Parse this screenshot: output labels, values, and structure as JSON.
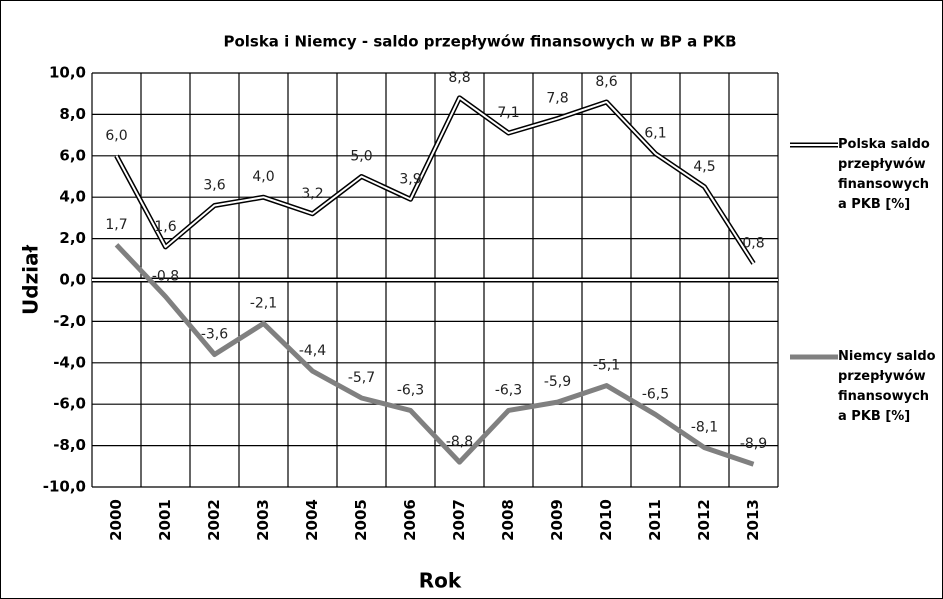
{
  "chart_data": {
    "type": "line",
    "title": "Polska i Niemcy - saldo przepływów finansowych w BP a PKB",
    "xlabel": "Rok",
    "ylabel": "Udział",
    "categories": [
      "2000",
      "2001",
      "2002",
      "2003",
      "2004",
      "2005",
      "2006",
      "2007",
      "2008",
      "2009",
      "2010",
      "2011",
      "2012",
      "2013"
    ],
    "series": [
      {
        "name": "Polska saldo przepływów finansowych a PKB [%]",
        "color": "#000000",
        "values": [
          6.0,
          1.6,
          3.6,
          4.0,
          3.2,
          5.0,
          3.9,
          8.8,
          7.1,
          7.8,
          8.6,
          6.1,
          4.5,
          0.8
        ],
        "value_labels": [
          "6,0",
          "1,6",
          "3,6",
          "4,0",
          "3,2",
          "5,0",
          "3,9",
          "8,8",
          "7,1",
          "7,8",
          "8,6",
          "6,1",
          "4,5",
          "0,8"
        ]
      },
      {
        "name": "Niemcy saldo przepływów finansowych a PKB [%]",
        "color": "#808080",
        "values": [
          1.7,
          -0.8,
          -3.6,
          -2.1,
          -4.4,
          -5.7,
          -6.3,
          -8.8,
          -6.3,
          -5.9,
          -5.1,
          -6.5,
          -8.1,
          -8.9
        ],
        "value_labels": [
          "1,7",
          "-0,8",
          "-3,6",
          "-2,1",
          "-4,4",
          "-5,7",
          "-6,3",
          "-8,8",
          "-6,3",
          "-5,9",
          "-5,1",
          "-6,5",
          "-8,1",
          "-8,9"
        ]
      }
    ],
    "ylim": [
      -10,
      10
    ],
    "yticks": [
      {
        "value": -10,
        "label": "-10,0"
      },
      {
        "value": -8,
        "label": "-8,0"
      },
      {
        "value": -6,
        "label": "-6,0"
      },
      {
        "value": -4,
        "label": "-4,0"
      },
      {
        "value": -2,
        "label": "-2,0"
      },
      {
        "value": 0,
        "label": "0,0"
      },
      {
        "value": 2,
        "label": "2,0"
      },
      {
        "value": 4,
        "label": "4,0"
      },
      {
        "value": 6,
        "label": "6,0"
      },
      {
        "value": 8,
        "label": "8,0"
      },
      {
        "value": 10,
        "label": "10,0"
      }
    ],
    "grid": true,
    "legend": "right"
  }
}
